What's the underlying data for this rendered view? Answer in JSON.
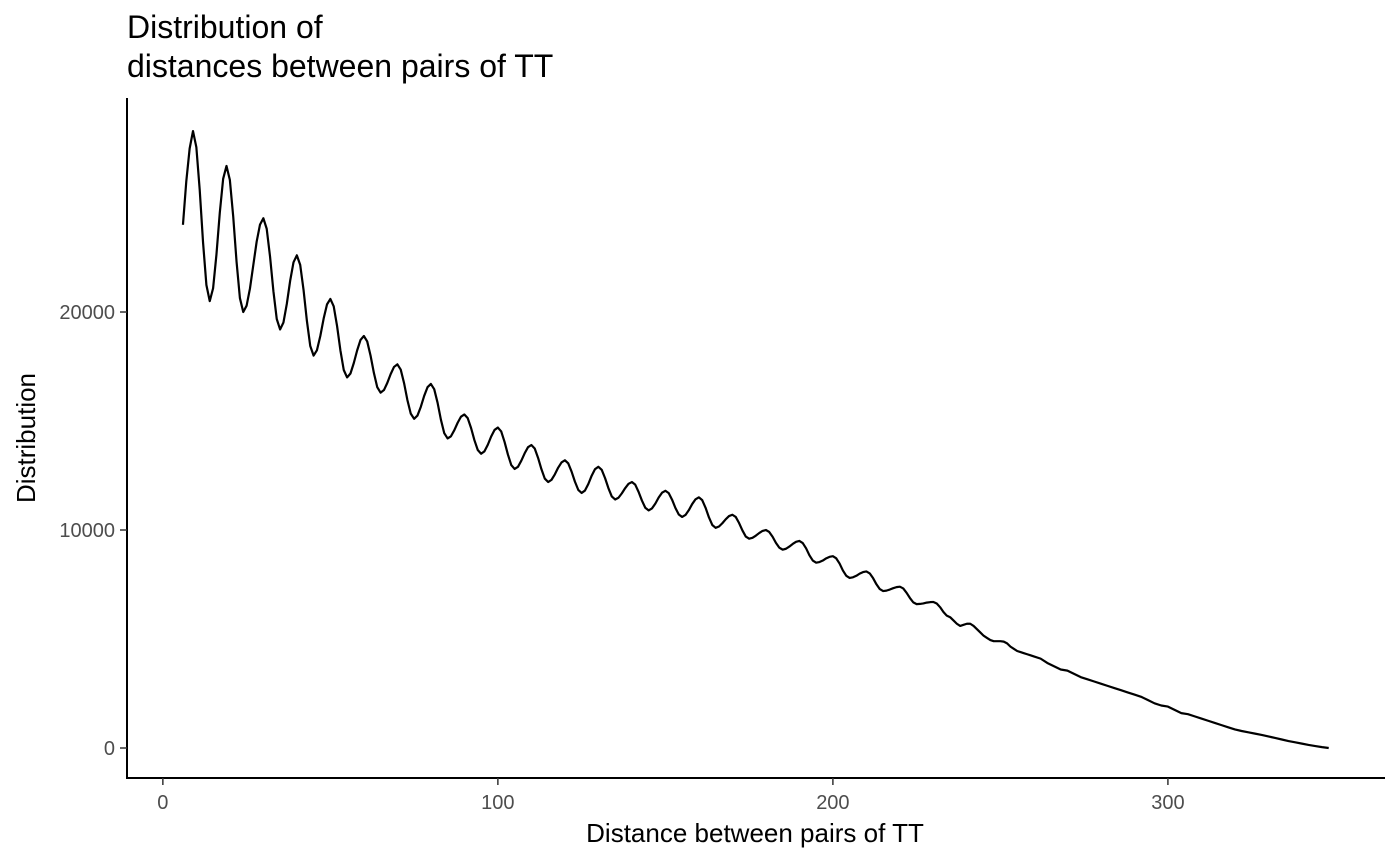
{
  "chart_data": {
    "type": "line",
    "title": [
      "Distribution of",
      "distances between pairs of TT"
    ],
    "x_label": "Distance between pairs of TT",
    "y_label": "Distribution",
    "color": "#000000",
    "grid": false,
    "xlim": [
      -10.7,
      364.8
    ],
    "ylim": [
      -1376,
      29817
    ],
    "xticks": [
      0,
      100,
      200,
      300
    ],
    "yticks": [
      0,
      10000,
      20000
    ],
    "x": [
      6,
      7,
      8,
      9,
      10,
      11,
      12,
      13,
      14,
      15,
      16,
      17,
      18,
      19,
      20,
      21,
      22,
      23,
      24,
      25,
      26,
      27,
      28,
      29,
      30,
      31,
      32,
      33,
      34,
      35,
      36,
      37,
      38,
      39,
      40,
      41,
      42,
      43,
      44,
      45,
      46,
      47,
      48,
      49,
      50,
      51,
      52,
      53,
      54,
      55,
      56,
      57,
      58,
      59,
      60,
      61,
      62,
      63,
      64,
      65,
      66,
      67,
      68,
      69,
      70,
      71,
      72,
      73,
      74,
      75,
      76,
      77,
      78,
      79,
      80,
      81,
      82,
      83,
      84,
      85,
      86,
      87,
      88,
      89,
      90,
      91,
      92,
      93,
      94,
      95,
      96,
      97,
      98,
      99,
      100,
      101,
      102,
      103,
      104,
      105,
      106,
      107,
      108,
      109,
      110,
      111,
      112,
      113,
      114,
      115,
      116,
      117,
      118,
      119,
      120,
      121,
      122,
      123,
      124,
      125,
      126,
      127,
      128,
      129,
      130,
      131,
      132,
      133,
      134,
      135,
      136,
      137,
      138,
      139,
      140,
      141,
      142,
      143,
      144,
      145,
      146,
      147,
      148,
      149,
      150,
      151,
      152,
      153,
      154,
      155,
      156,
      157,
      158,
      159,
      160,
      161,
      162,
      163,
      164,
      165,
      166,
      167,
      168,
      169,
      170,
      171,
      172,
      173,
      174,
      175,
      176,
      177,
      178,
      179,
      180,
      181,
      182,
      183,
      184,
      185,
      186,
      187,
      188,
      189,
      190,
      191,
      192,
      193,
      194,
      195,
      196,
      197,
      198,
      199,
      200,
      201,
      202,
      203,
      204,
      205,
      206,
      207,
      208,
      209,
      210,
      211,
      212,
      213,
      214,
      215,
      216,
      217,
      218,
      219,
      220,
      221,
      222,
      223,
      224,
      225,
      226,
      227,
      228,
      229,
      230,
      231,
      232,
      233,
      234,
      235,
      236,
      237,
      238,
      239,
      240,
      241,
      242,
      243,
      244,
      245,
      246,
      247,
      248,
      249,
      250,
      251,
      252,
      253,
      254,
      255,
      256,
      257,
      258,
      259,
      260,
      262,
      264,
      266,
      268,
      270,
      272,
      274,
      276,
      278,
      280,
      282,
      284,
      286,
      288,
      290,
      292,
      294,
      296,
      298,
      300,
      302,
      304,
      306,
      308,
      310,
      312,
      314,
      316,
      318,
      320,
      322,
      324,
      326,
      328,
      330,
      332,
      334,
      336,
      338,
      340,
      342,
      344,
      346,
      348
    ],
    "values": [
      24000,
      26000,
      27500,
      28300,
      27560,
      25610,
      23190,
      21240,
      20500,
      21090,
      22640,
      24560,
      26110,
      26700,
      26060,
      24390,
      22310,
      20640,
      20000,
      20290,
      21075,
      22150,
      23225,
      24010,
      24300,
      23820,
      22540,
      20960,
      19680,
      19200,
      19520,
      20370,
      21430,
      22280,
      22600,
      22160,
      21010,
      19590,
      18440,
      18000,
      18250,
      18900,
      19700,
      20350,
      20600,
      20260,
      19360,
      18240,
      17340,
      17000,
      17180,
      17660,
      18240,
      18720,
      18900,
      18650,
      18000,
      17200,
      16550,
      16300,
      16420,
      16750,
      17150,
      17480,
      17600,
      17360,
      16740,
      15960,
      15340,
      15100,
      15250,
      15650,
      16150,
      16550,
      16700,
      16460,
      15840,
      15060,
      14440,
      14200,
      14300,
      14580,
      14920,
      15200,
      15300,
      15130,
      14680,
      14120,
      13670,
      13500,
      13610,
      13910,
      14290,
      14590,
      14700,
      14520,
      14040,
      13460,
      12980,
      12800,
      12900,
      13180,
      13520,
      13800,
      13900,
      13740,
      13310,
      12790,
      12360,
      12200,
      12300,
      12550,
      12860,
      13100,
      13200,
      13060,
      12680,
      12220,
      11840,
      11700,
      11810,
      12110,
      12490,
      12790,
      12900,
      12760,
      12380,
      11920,
      11540,
      11400,
      11480,
      11680,
      11920,
      12120,
      12200,
      12080,
      11750,
      11350,
      11020,
      10900,
      10990,
      11210,
      11490,
      11710,
      11800,
      11690,
      11390,
      11010,
      10710,
      10600,
      10690,
      10910,
      11190,
      11410,
      11500,
      11370,
      11020,
      10580,
      10230,
      10100,
      10160,
      10310,
      10490,
      10640,
      10700,
      10600,
      10320,
      9980,
      9700,
      9600,
      9640,
      9740,
      9860,
      9960,
      10000,
      9910,
      9690,
      9410,
      9190,
      9100,
      9140,
      9240,
      9360,
      9460,
      9500,
      9400,
      9160,
      8840,
      8600,
      8500,
      8530,
      8600,
      8700,
      8770,
      8800,
      8700,
      8460,
      8140,
      7900,
      7800,
      7830,
      7900,
      8000,
      8070,
      8100,
      8010,
      7790,
      7510,
      7290,
      7200,
      7220,
      7270,
      7330,
      7380,
      7400,
      7320,
      7120,
      6880,
      6680,
      6600,
      6610,
      6630,
      6670,
      6690,
      6700,
      6630,
      6460,
      6240,
      6070,
      6000,
      5850,
      5700,
      5600,
      5650,
      5700,
      5700,
      5600,
      5450,
      5300,
      5150,
      5050,
      4950,
      4900,
      4900,
      4900,
      4880,
      4800,
      4650,
      4550,
      4450,
      4400,
      4350,
      4300,
      4250,
      4200,
      4100,
      3900,
      3750,
      3600,
      3550,
      3400,
      3250,
      3150,
      3050,
      2950,
      2850,
      2750,
      2650,
      2550,
      2450,
      2350,
      2200,
      2050,
      1950,
      1900,
      1750,
      1600,
      1550,
      1450,
      1350,
      1250,
      1150,
      1050,
      950,
      850,
      780,
      720,
      660,
      600,
      530,
      460,
      390,
      320,
      260,
      200,
      140,
      90,
      40,
      0
    ]
  }
}
